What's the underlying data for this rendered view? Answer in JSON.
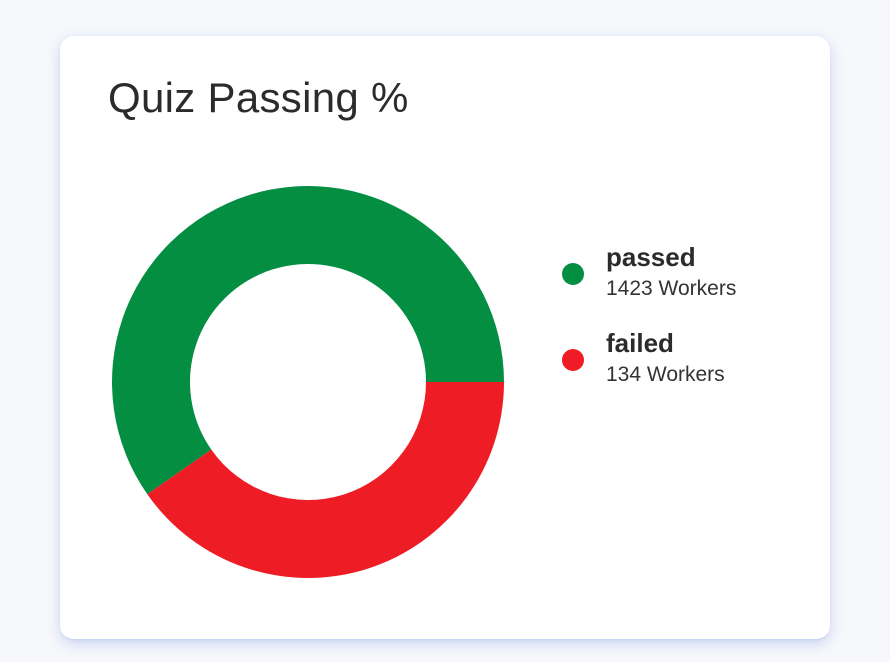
{
  "card": {
    "title": "Quiz Passing %"
  },
  "chart_data": {
    "type": "pie",
    "variant": "donut",
    "categories": [
      "passed",
      "failed"
    ],
    "values": [
      1423,
      134
    ],
    "colors": [
      "#038e42",
      "#ee1c25"
    ],
    "value_suffix": "Workers",
    "legend_position": "right"
  },
  "legend": {
    "items": [
      {
        "label": "passed",
        "value_text": "1423 Workers",
        "color": "#038e42"
      },
      {
        "label": "failed",
        "value_text": "134 Workers",
        "color": "#ee1c25"
      }
    ]
  }
}
